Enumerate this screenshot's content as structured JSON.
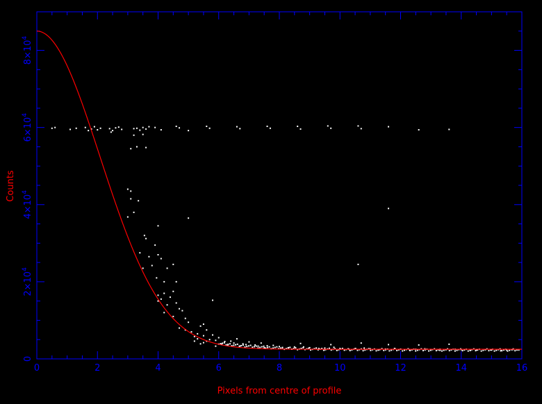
{
  "chart_data": {
    "type": "scatter",
    "title": "",
    "xlabel": "Pixels from centre of profile",
    "ylabel": "Counts",
    "xlim": [
      0,
      16
    ],
    "ylim": [
      0,
      90000
    ],
    "grid": false,
    "colors": {
      "background": "#000000",
      "axes": "#0000ff",
      "tick_labels": "#0000ff",
      "labels": "#ff0000",
      "fit_line": "#ff0000",
      "points": "#ffffff"
    },
    "x_ticks": [
      {
        "value": 0,
        "label": "0"
      },
      {
        "value": 2,
        "label": "2"
      },
      {
        "value": 4,
        "label": "4"
      },
      {
        "value": 6,
        "label": "6"
      },
      {
        "value": 8,
        "label": "8"
      },
      {
        "value": 10,
        "label": "10"
      },
      {
        "value": 12,
        "label": "12"
      },
      {
        "value": 14,
        "label": "14"
      },
      {
        "value": 16,
        "label": "16"
      }
    ],
    "y_ticks": [
      {
        "value": 0,
        "mantissa": "0",
        "exponent": ""
      },
      {
        "value": 20000,
        "mantissa": "2×10",
        "exponent": "4"
      },
      {
        "value": 40000,
        "mantissa": "4×10",
        "exponent": "4"
      },
      {
        "value": 60000,
        "mantissa": "6×10",
        "exponent": "4"
      },
      {
        "value": 80000,
        "mantissa": "8×10",
        "exponent": "4"
      }
    ],
    "series": [
      {
        "type": "line",
        "model": "gaussian",
        "peak": 85000,
        "background": 2500,
        "sigma": 2.08
      },
      {
        "type": "scatter",
        "points": [
          [
            0.5,
            59800
          ],
          [
            0.6,
            60000
          ],
          [
            1.1,
            59500
          ],
          [
            1.3,
            59800
          ],
          [
            1.6,
            60000
          ],
          [
            1.7,
            59200
          ],
          [
            1.8,
            59600
          ],
          [
            1.9,
            60200
          ],
          [
            2.0,
            59400
          ],
          [
            2.1,
            59800
          ],
          [
            2.4,
            59700
          ],
          [
            2.45,
            58800
          ],
          [
            2.5,
            59200
          ],
          [
            2.6,
            59900
          ],
          [
            2.7,
            60100
          ],
          [
            2.8,
            59500
          ],
          [
            3.2,
            59700
          ],
          [
            3.3,
            59800
          ],
          [
            3.4,
            59300
          ],
          [
            3.5,
            60000
          ],
          [
            3.6,
            59600
          ],
          [
            3.7,
            60200
          ],
          [
            3.9,
            60000
          ],
          [
            4.1,
            59400
          ],
          [
            4.6,
            60300
          ],
          [
            4.7,
            59900
          ],
          [
            5.0,
            59200
          ],
          [
            5.6,
            60300
          ],
          [
            5.7,
            59800
          ],
          [
            6.6,
            60200
          ],
          [
            6.7,
            59700
          ],
          [
            7.6,
            60300
          ],
          [
            7.7,
            59800
          ],
          [
            8.6,
            60300
          ],
          [
            8.7,
            59600
          ],
          [
            9.6,
            60400
          ],
          [
            9.7,
            59800
          ],
          [
            10.6,
            60400
          ],
          [
            10.7,
            59700
          ],
          [
            11.6,
            60200
          ],
          [
            12.6,
            59400
          ],
          [
            13.6,
            59500
          ],
          [
            3.1,
            54500
          ],
          [
            3.3,
            55000
          ],
          [
            3.6,
            54800
          ],
          [
            3.2,
            58000
          ],
          [
            3.5,
            58200
          ],
          [
            3.0,
            44000
          ],
          [
            3.1,
            43500
          ],
          [
            3.1,
            41500
          ],
          [
            3.0,
            36800
          ],
          [
            3.2,
            38000
          ],
          [
            3.35,
            41000
          ],
          [
            3.4,
            27500
          ],
          [
            3.5,
            23500
          ],
          [
            3.55,
            32000
          ],
          [
            3.6,
            31200
          ],
          [
            3.7,
            26500
          ],
          [
            3.8,
            24200
          ],
          [
            3.9,
            29500
          ],
          [
            4.0,
            27000
          ],
          [
            4.0,
            34500
          ],
          [
            4.1,
            26000
          ],
          [
            3.95,
            21000
          ],
          [
            4.2,
            20000
          ],
          [
            4.3,
            23500
          ],
          [
            4.5,
            24500
          ],
          [
            4.0,
            16500
          ],
          [
            4.1,
            15500
          ],
          [
            4.2,
            17000
          ],
          [
            4.4,
            16000
          ],
          [
            4.5,
            17500
          ],
          [
            4.6,
            20000
          ],
          [
            4.6,
            14500
          ],
          [
            4.7,
            13000
          ],
          [
            4.0,
            15000
          ],
          [
            4.3,
            14000
          ],
          [
            4.2,
            12000
          ],
          [
            4.5,
            11000
          ],
          [
            4.8,
            12500
          ],
          [
            4.9,
            10500
          ],
          [
            5.0,
            9500
          ],
          [
            4.7,
            8000
          ],
          [
            5.1,
            7000
          ],
          [
            5.3,
            6500
          ],
          [
            5.4,
            8500
          ],
          [
            5.5,
            9000
          ],
          [
            5.5,
            6000
          ],
          [
            5.6,
            7500
          ],
          [
            5.7,
            5000
          ],
          [
            5.8,
            6200
          ],
          [
            5.9,
            4800
          ],
          [
            6.0,
            5500
          ],
          [
            5.3,
            5200
          ],
          [
            5.6,
            4600
          ],
          [
            5.0,
            36500
          ],
          [
            5.8,
            15200
          ],
          [
            4.9,
            7500
          ],
          [
            5.2,
            5800
          ],
          [
            5.5,
            4200
          ],
          [
            6.2,
            4500
          ],
          [
            6.5,
            4100
          ],
          [
            6.8,
            3900
          ],
          [
            7.2,
            3600
          ],
          [
            7.6,
            3400
          ],
          [
            8.0,
            3200
          ],
          [
            8.5,
            3100
          ],
          [
            9.0,
            2900
          ],
          [
            9.5,
            2800
          ],
          [
            10.0,
            2700
          ],
          [
            10.5,
            2650
          ],
          [
            11.0,
            2600
          ],
          [
            11.5,
            2550
          ],
          [
            12.0,
            2500
          ],
          [
            12.5,
            2500
          ],
          [
            13.0,
            2450
          ],
          [
            13.5,
            2400
          ],
          [
            14.0,
            2400
          ],
          [
            14.5,
            2350
          ],
          [
            15.0,
            2300
          ],
          [
            15.5,
            2300
          ],
          [
            15.9,
            2300
          ],
          [
            6.1,
            3800
          ],
          [
            6.4,
            4600
          ],
          [
            6.9,
            3700
          ],
          [
            7.3,
            3300
          ],
          [
            7.8,
            3500
          ],
          [
            8.3,
            2900
          ],
          [
            8.8,
            3100
          ],
          [
            9.3,
            2700
          ],
          [
            9.8,
            3000
          ],
          [
            10.3,
            2500
          ],
          [
            10.8,
            2800
          ],
          [
            11.3,
            2400
          ],
          [
            11.8,
            2700
          ],
          [
            12.3,
            2300
          ],
          [
            12.8,
            2600
          ],
          [
            13.3,
            2200
          ],
          [
            13.8,
            2500
          ],
          [
            14.3,
            2200
          ],
          [
            14.8,
            2400
          ],
          [
            15.3,
            2100
          ],
          [
            15.7,
            2400
          ],
          [
            8.7,
            4000
          ],
          [
            9.7,
            3700
          ],
          [
            10.7,
            4100
          ],
          [
            11.6,
            3700
          ],
          [
            12.6,
            3600
          ],
          [
            13.6,
            3800
          ],
          [
            9.5,
            2400
          ],
          [
            11.6,
            39000
          ],
          [
            10.6,
            24500
          ],
          [
            6.6,
            5200
          ],
          [
            7.0,
            4400
          ],
          [
            7.4,
            4100
          ],
          [
            6.3,
            3500
          ],
          [
            7.5,
            2900
          ],
          [
            8.1,
            2700
          ],
          [
            5.9,
            3300
          ],
          [
            6.7,
            3300
          ],
          [
            5.4,
            3900
          ],
          [
            5.2,
            4600
          ]
        ]
      }
    ]
  }
}
